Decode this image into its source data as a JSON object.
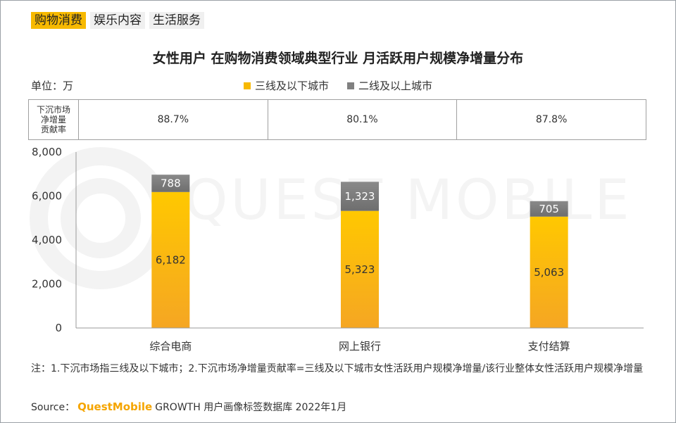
{
  "tabs": [
    {
      "label": "购物消费",
      "active": true
    },
    {
      "label": "娱乐内容",
      "active": false
    },
    {
      "label": "生活服务",
      "active": false
    }
  ],
  "watermark": "QUEST MOBILE",
  "unit_label": "单位：万",
  "contribution": {
    "row_label": [
      "下沉市场",
      "净增量",
      "贡献率"
    ],
    "values": [
      "88.7%",
      "80.1%",
      "87.8%"
    ]
  },
  "colors": {
    "accent": "#f7b900",
    "series_lower": "#f7b900",
    "series_upper": "#808080"
  },
  "chart_data": {
    "type": "bar",
    "stacked": true,
    "title": "女性用户 在购物消费领域典型行业 月活跃用户规模净增量分布",
    "categories": [
      "综合电商",
      "网上银行",
      "支付结算"
    ],
    "series": [
      {
        "name": "三线及以下城市",
        "values": [
          6182,
          5323,
          5063
        ],
        "labels": [
          "6,182",
          "5,323",
          "5,063"
        ]
      },
      {
        "name": "二线及以上城市",
        "values": [
          788,
          1323,
          705
        ],
        "labels": [
          "788",
          "1,323",
          "705"
        ]
      }
    ],
    "ylim": [
      0,
      8000
    ],
    "yticks": [
      0,
      2000,
      4000,
      6000,
      8000
    ],
    "ytick_labels": [
      "0",
      "2,000",
      "4,000",
      "6,000",
      "8,000"
    ],
    "grid": false
  },
  "footnote": "注：1.下沉市场指三线及以下城市；2.下沉市场净增量贡献率=三线及以下城市女性活跃用户规模净增量/该行业整体女性活跃用户规模净增量",
  "source": {
    "prefix": "Source：",
    "brand": "QuestMobile",
    "text": "GROWTH 用户画像标签数据库 2022年1月"
  }
}
